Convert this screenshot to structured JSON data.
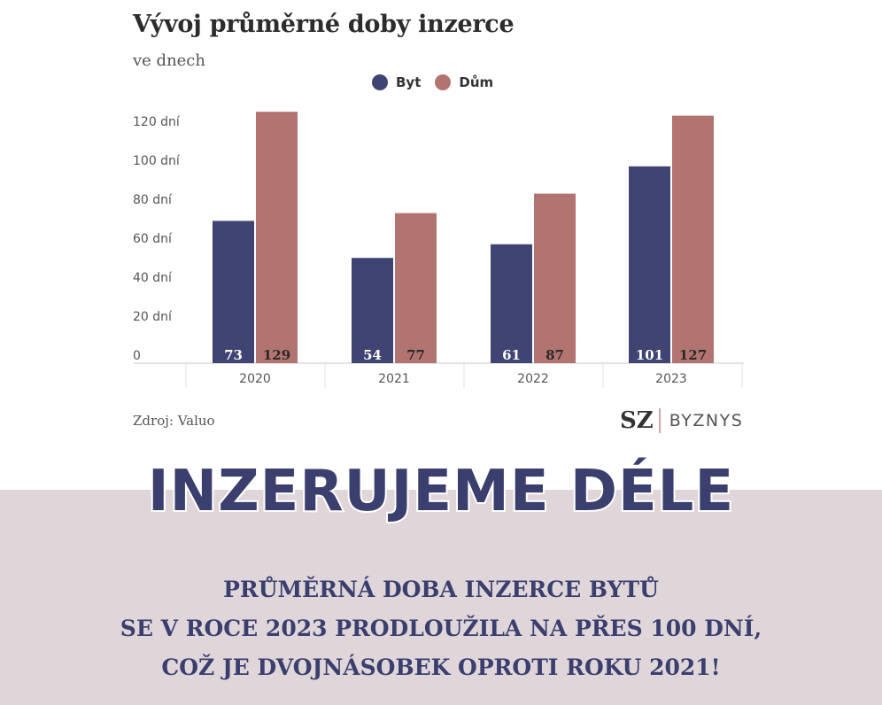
{
  "colors": {
    "byt": "#3f4472",
    "dum": "#b27470",
    "headline": "#3a3f6e",
    "band": "#e0d6da"
  },
  "chart_data": {
    "type": "bar",
    "title": "Vývoj průměrné doby inzerce",
    "subtitle": "ve dnech",
    "categories": [
      "2020",
      "2021",
      "2022",
      "2023"
    ],
    "series": [
      {
        "name": "Byt",
        "values": [
          73,
          54,
          61,
          101
        ],
        "labels": [
          "73",
          "54",
          "61",
          "101"
        ]
      },
      {
        "name": "Dům",
        "values": [
          129,
          77,
          87,
          127
        ],
        "labels": [
          "129",
          "77",
          "87",
          "127"
        ]
      }
    ],
    "yticks": [
      {
        "value": 0,
        "label": "0"
      },
      {
        "value": 20,
        "label": "20 dní"
      },
      {
        "value": 40,
        "label": "40 dní"
      },
      {
        "value": 60,
        "label": "60 dní"
      },
      {
        "value": 80,
        "label": "80 dní"
      },
      {
        "value": 100,
        "label": "100 dní"
      },
      {
        "value": 120,
        "label": "120 dní"
      }
    ],
    "ylim": [
      0,
      130
    ],
    "grid": false,
    "legend": "top-center"
  },
  "source": "Zdroj: Valuo",
  "brand": {
    "sz": "SZ",
    "byznys": "BYZNYS"
  },
  "headline": "INZERUJEME DÉLE",
  "body": {
    "line1": "PRŮMĚRNÁ DOBA INZERCE BYTŮ",
    "line2": "SE V ROCE 2023 PRODLOUŽILA NA PŘES 100 DNÍ,",
    "line3": "COŽ JE DVOJNÁSOBEK OPROTI ROKU 2021!"
  }
}
